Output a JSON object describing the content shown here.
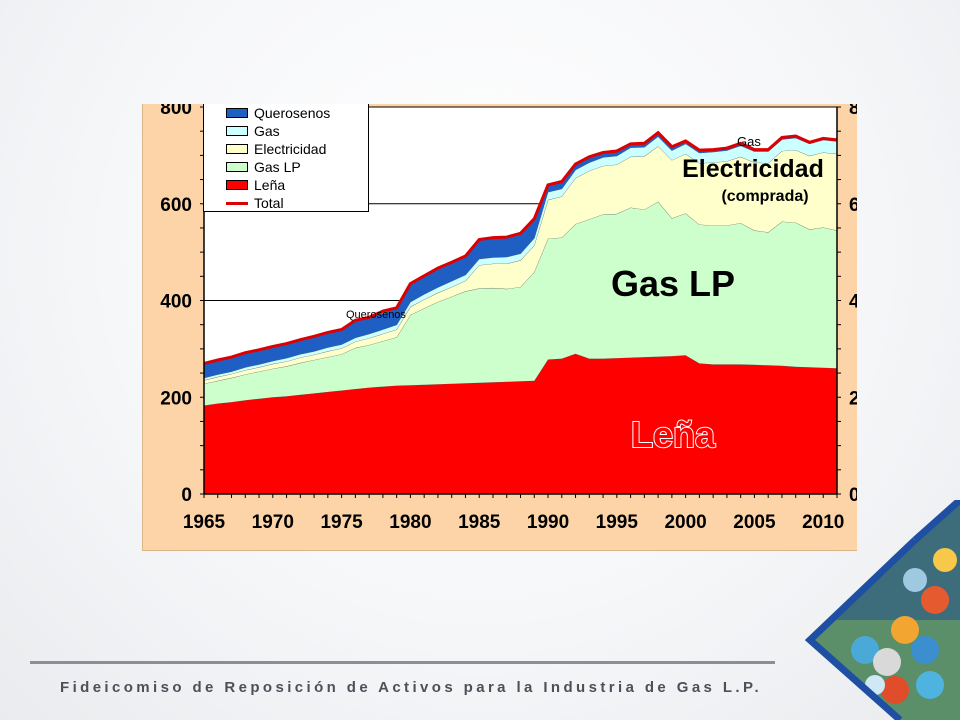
{
  "chart_data": {
    "type": "area",
    "stacked": true,
    "x": [
      1965,
      1966,
      1967,
      1968,
      1969,
      1970,
      1971,
      1972,
      1973,
      1974,
      1975,
      1976,
      1977,
      1978,
      1979,
      1980,
      1981,
      1982,
      1983,
      1984,
      1985,
      1986,
      1987,
      1988,
      1989,
      1990,
      1991,
      1992,
      1993,
      1994,
      1995,
      1996,
      1997,
      1998,
      1999,
      2000,
      2001,
      2002,
      2003,
      2004,
      2005,
      2006,
      2007,
      2008,
      2009,
      2010,
      2011
    ],
    "x_ticks": [
      "1965",
      "1970",
      "1975",
      "1980",
      "1985",
      "1990",
      "1995",
      "2000",
      "2005",
      "2010"
    ],
    "y_ticks": [
      "0",
      "200",
      "400",
      "600",
      "800"
    ],
    "ylim": [
      0,
      800
    ],
    "xlim": [
      1965,
      2011
    ],
    "grid": "y",
    "legend_position": "top-left",
    "series": [
      {
        "name": "Leña",
        "color": "#ff0000",
        "values": [
          183,
          187,
          190,
          194,
          197,
          200,
          202,
          205,
          208,
          211,
          214,
          217,
          220,
          222,
          224,
          225,
          226,
          227,
          228,
          229,
          230,
          231,
          232,
          233,
          234,
          278,
          280,
          290,
          280,
          280,
          281,
          282,
          283,
          284,
          285,
          287,
          270,
          268,
          268,
          268,
          267,
          266,
          265,
          263,
          262,
          261,
          260
        ]
      },
      {
        "name": "Gas LP",
        "color": "#ccffcc",
        "values": [
          45,
          47,
          50,
          53,
          56,
          59,
          62,
          66,
          69,
          72,
          75,
          85,
          88,
          94,
          100,
          145,
          158,
          170,
          180,
          190,
          195,
          195,
          192,
          195,
          225,
          250,
          250,
          268,
          288,
          298,
          298,
          310,
          305,
          320,
          285,
          293,
          287,
          287,
          287,
          292,
          278,
          275,
          298,
          298,
          285,
          290,
          285
        ]
      },
      {
        "name": "Electricidad",
        "color": "#ffffcc",
        "values": [
          7,
          8,
          8,
          9,
          9,
          10,
          10,
          11,
          11,
          12,
          12,
          13,
          14,
          15,
          16,
          17,
          18,
          19,
          20,
          22,
          48,
          50,
          52,
          55,
          55,
          80,
          85,
          95,
          100,
          100,
          102,
          105,
          110,
          115,
          120,
          123,
          127,
          130,
          133,
          137,
          140,
          143,
          146,
          150,
          152,
          155,
          158
        ]
      },
      {
        "name": "Gas",
        "color": "#ccffff",
        "values": [
          5,
          5,
          5,
          6,
          6,
          6,
          7,
          7,
          7,
          8,
          8,
          8,
          9,
          9,
          10,
          10,
          11,
          11,
          12,
          12,
          13,
          13,
          14,
          14,
          15,
          16,
          16,
          17,
          17,
          18,
          18,
          19,
          19,
          20,
          20,
          21,
          21,
          22,
          22,
          23,
          23,
          24,
          24,
          25,
          25,
          26,
          26
        ]
      },
      {
        "name": "Querosenos",
        "color": "#1f5fc4",
        "values": [
          30,
          30,
          30,
          30,
          30,
          30,
          30,
          30,
          31,
          31,
          31,
          36,
          34,
          33,
          35,
          38,
          38,
          40,
          39,
          39,
          40,
          41,
          41,
          42,
          40,
          15,
          15,
          12,
          12,
          10,
          10,
          8,
          8,
          8,
          8,
          6,
          6,
          5,
          5,
          5,
          4,
          4,
          4,
          4,
          3,
          3,
          3
        ]
      },
      {
        "name": "Total",
        "color": "#dd0000",
        "values": [
          270,
          277,
          283,
          292,
          298,
          305,
          311,
          319,
          326,
          334,
          340,
          359,
          365,
          378,
          385,
          435,
          451,
          467,
          479,
          492,
          526,
          530,
          531,
          539,
          569,
          639,
          646,
          682,
          697,
          706,
          709,
          724,
          725,
          747,
          718,
          730,
          711,
          712,
          715,
          725,
          712,
          712,
          737,
          740,
          727,
          735,
          732
        ]
      }
    ],
    "annotations": [
      "Gas LP",
      "Leña",
      "Electricidad",
      "(comprada)",
      "Gas",
      "Querosenos"
    ]
  },
  "labels": {
    "gas_lp": "Gas LP",
    "lena": "Leña",
    "electricidad": "Electricidad",
    "comprada": "(comprada)",
    "gas": "Gas",
    "querosenos": "Querosenos"
  },
  "legend": [
    {
      "label": "Querosenos",
      "color": "#1f5fc4",
      "kind": "swatch"
    },
    {
      "label": "Gas",
      "color": "#ccffff",
      "kind": "swatch"
    },
    {
      "label": "Electricidad",
      "color": "#ffffcc",
      "kind": "swatch"
    },
    {
      "label": "Gas LP",
      "color": "#ccffcc",
      "kind": "swatch"
    },
    {
      "label": "Leña",
      "color": "#ff0000",
      "kind": "swatch"
    },
    {
      "label": "Total",
      "color": "#dd0000",
      "kind": "line"
    }
  ],
  "footer": {
    "text": "Fideicomiso de Reposición de Activos para la Industria de Gas L.P."
  }
}
